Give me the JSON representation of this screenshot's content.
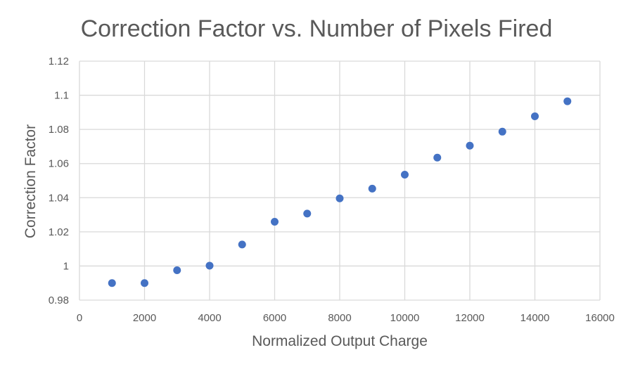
{
  "chart_data": {
    "type": "scatter",
    "title": "Correction Factor vs. Number of Pixels Fired",
    "xlabel": "Normalized Output Charge",
    "ylabel": "Correction Factor",
    "xlim": [
      0,
      16000
    ],
    "ylim": [
      0.98,
      1.12
    ],
    "x_ticks": [
      "0",
      "2000",
      "4000",
      "6000",
      "8000",
      "10000",
      "12000",
      "14000",
      "16000"
    ],
    "y_ticks": [
      "0.98",
      "1",
      "1.02",
      "1.04",
      "1.06",
      "1.08",
      "1.1",
      "1.12"
    ],
    "grid": true,
    "legend": "none",
    "marker_color": "#4472c4",
    "points": [
      {
        "x": 1000,
        "y": 0.99
      },
      {
        "x": 2000,
        "y": 0.99
      },
      {
        "x": 3000,
        "y": 0.9975
      },
      {
        "x": 4000,
        "y": 1.0002
      },
      {
        "x": 5000,
        "y": 1.0126
      },
      {
        "x": 6000,
        "y": 1.0259
      },
      {
        "x": 7000,
        "y": 1.0307
      },
      {
        "x": 8000,
        "y": 1.0396
      },
      {
        "x": 9000,
        "y": 1.0453
      },
      {
        "x": 10000,
        "y": 1.0535
      },
      {
        "x": 11000,
        "y": 1.0635
      },
      {
        "x": 12000,
        "y": 1.0705
      },
      {
        "x": 13000,
        "y": 1.0787
      },
      {
        "x": 14000,
        "y": 1.0877
      },
      {
        "x": 15000,
        "y": 1.0965
      }
    ]
  }
}
